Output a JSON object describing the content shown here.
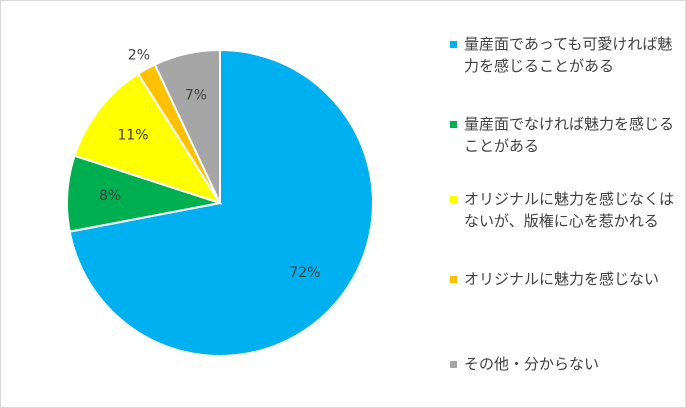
{
  "chart_data": {
    "type": "pie",
    "categories": [
      "量産面であっても可愛ければ魅力を感じることがある",
      "量産面でなければ魅力を感じることがある",
      "オリジナルに魅力を感じなくはないが、版権に心を惹かれる",
      "オリジナルに魅力を感じない",
      "その他・分からない"
    ],
    "values": [
      72,
      8,
      11,
      2,
      7
    ],
    "value_labels": [
      "72%",
      "8%",
      "11%",
      "2%",
      "7%"
    ],
    "colors": [
      "#00b0f0",
      "#00b050",
      "#ffff00",
      "#ffc000",
      "#a6a6a6"
    ],
    "legend": "right"
  }
}
